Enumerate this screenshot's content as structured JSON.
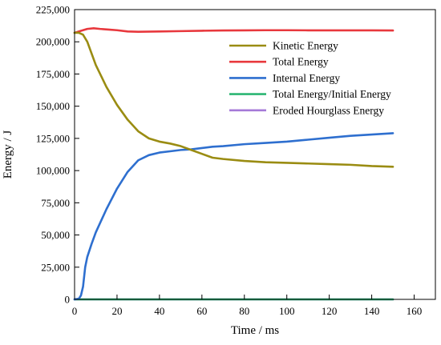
{
  "chart_data": {
    "type": "line",
    "title": "",
    "xlabel": "Time / ms",
    "ylabel": "Energy / J",
    "xlim": [
      0,
      170
    ],
    "ylim": [
      0,
      225000
    ],
    "x_ticks": [
      0,
      20,
      40,
      60,
      80,
      100,
      120,
      140,
      160
    ],
    "x_tick_labels": [
      "0",
      "20",
      "40",
      "60",
      "80",
      "100",
      "120",
      "140",
      "160"
    ],
    "y_ticks": [
      0,
      25000,
      50000,
      75000,
      100000,
      125000,
      150000,
      175000,
      200000,
      225000
    ],
    "y_tick_labels": [
      "0",
      "25,000",
      "50,000",
      "75,000",
      "100,000",
      "125,000",
      "150,000",
      "175,000",
      "200,000",
      "225,000"
    ],
    "grid": false,
    "legend_position": "top-right",
    "series": [
      {
        "name": "Kinetic Energy",
        "color": "#9a8c12",
        "x": [
          0,
          2,
          4,
          6,
          10,
          15,
          20,
          25,
          30,
          35,
          40,
          45,
          50,
          55,
          60,
          65,
          70,
          80,
          90,
          100,
          110,
          120,
          130,
          140,
          150
        ],
        "y": [
          207000,
          207000,
          205500,
          200000,
          182000,
          165000,
          151000,
          139500,
          130500,
          125000,
          122500,
          121000,
          119000,
          116000,
          113000,
          110000,
          109000,
          107500,
          106500,
          106000,
          105500,
          105000,
          104500,
          103500,
          103000
        ]
      },
      {
        "name": "Total Energy",
        "color": "#e8383d",
        "x": [
          0,
          3,
          6,
          9,
          12,
          16,
          20,
          25,
          30,
          40,
          50,
          60,
          70,
          80,
          90,
          100,
          110,
          120,
          130,
          140,
          150
        ],
        "y": [
          207000,
          208500,
          210000,
          210500,
          210000,
          209500,
          209000,
          208000,
          207800,
          208000,
          208300,
          208600,
          208800,
          208900,
          209000,
          209000,
          208900,
          208900,
          208900,
          208900,
          208800
        ]
      },
      {
        "name": "Internal Energy",
        "color": "#2e6fcf",
        "x": [
          0,
          2,
          3,
          4,
          5,
          6,
          8,
          10,
          15,
          20,
          25,
          30,
          35,
          40,
          45,
          50,
          55,
          60,
          65,
          70,
          80,
          90,
          100,
          110,
          120,
          130,
          140,
          150
        ],
        "y": [
          0,
          500,
          3000,
          10000,
          25000,
          33000,
          43000,
          52000,
          70000,
          86000,
          99000,
          108000,
          112000,
          114000,
          115000,
          116000,
          116500,
          117500,
          118500,
          119000,
          120500,
          121500,
          122500,
          124000,
          125500,
          127000,
          128000,
          129000
        ]
      },
      {
        "name": "Total Energy/Initial Energy",
        "color": "#2bb673",
        "x": [
          0,
          150
        ],
        "y": [
          0,
          0
        ]
      },
      {
        "name": "Eroded Hourglass Energy",
        "color": "#a57ad8",
        "x": [
          0,
          150
        ],
        "y": [
          0,
          0
        ]
      }
    ]
  }
}
